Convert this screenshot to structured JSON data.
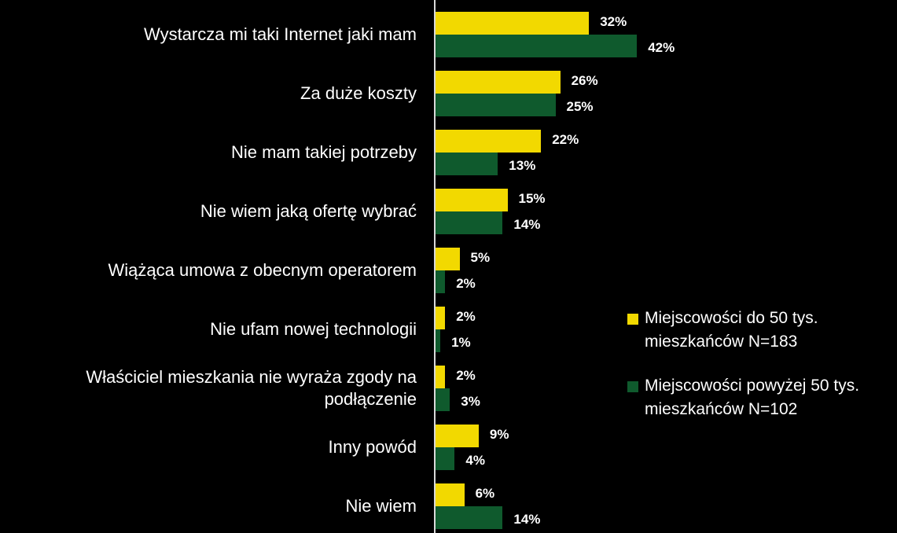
{
  "chart_data": {
    "type": "bar",
    "orientation": "horizontal",
    "categories": [
      "Wystarcza mi taki Internet jaki mam",
      "Za duże koszty",
      "Nie mam takiej potrzeby",
      "Nie wiem jaką ofertę wybrać",
      "Wiążąca umowa z obecnym operatorem",
      "Nie ufam nowej technologii",
      "Właściciel mieszkania nie wyraża zgody na podłączenie",
      "Inny powód",
      "Nie wiem"
    ],
    "series": [
      {
        "name": "Miejscowości do 50 tys. mieszkańców N=183",
        "color": "#f2d900",
        "values": [
          32,
          26,
          22,
          15,
          5,
          2,
          2,
          9,
          6
        ],
        "value_labels": [
          "32%",
          "26%",
          "22%",
          "15%",
          "5%",
          "2%",
          "2%",
          "9%",
          "6%"
        ]
      },
      {
        "name": "Miejscowości powyżej 50 tys. mieszkańców N=102",
        "color": "#0f5a2d",
        "values": [
          42,
          25,
          13,
          14,
          2,
          1,
          3,
          4,
          14
        ],
        "value_labels": [
          "42%",
          "25%",
          "13%",
          "14%",
          "2%",
          "1%",
          "3%",
          "4%",
          "14%"
        ]
      }
    ],
    "legend": "right"
  }
}
